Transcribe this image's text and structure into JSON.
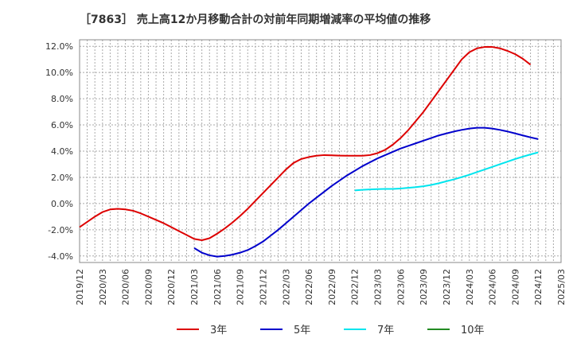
{
  "chart_data": {
    "type": "line",
    "title": "［7863］ 売上高12か月移動合計の対前年同期増減率の平均値の推移",
    "xlabel": "",
    "ylabel": "",
    "ylim": [
      -4.5,
      12.5
    ],
    "yticks": [
      -4.0,
      -2.0,
      0.0,
      2.0,
      4.0,
      6.0,
      8.0,
      10.0,
      12.0
    ],
    "ytick_labels": [
      "-4.0%",
      "-2.0%",
      "0.0%",
      "2.0%",
      "4.0%",
      "6.0%",
      "8.0%",
      "10.0%",
      "12.0%"
    ],
    "xticks": [
      "2019/12",
      "2020/03",
      "2020/06",
      "2020/09",
      "2020/12",
      "2021/03",
      "2021/06",
      "2021/09",
      "2021/12",
      "2022/03",
      "2022/06",
      "2022/09",
      "2022/12",
      "2023/03",
      "2023/06",
      "2023/09",
      "2023/12",
      "2024/03",
      "2024/06",
      "2024/09",
      "2024/12",
      "2025/03"
    ],
    "grid": true,
    "legend_position": "bottom",
    "series": [
      {
        "name": "3年",
        "color": "#dd0000",
        "points": [
          [
            "2019/12",
            -1.8
          ],
          [
            "2020/01",
            -1.4
          ],
          [
            "2020/02",
            -1.0
          ],
          [
            "2020/03",
            -0.65
          ],
          [
            "2020/04",
            -0.45
          ],
          [
            "2020/05",
            -0.4
          ],
          [
            "2020/06",
            -0.45
          ],
          [
            "2020/07",
            -0.55
          ],
          [
            "2020/08",
            -0.75
          ],
          [
            "2020/09",
            -1.0
          ],
          [
            "2020/10",
            -1.25
          ],
          [
            "2020/11",
            -1.5
          ],
          [
            "2020/12",
            -1.8
          ],
          [
            "2021/01",
            -2.1
          ],
          [
            "2021/02",
            -2.4
          ],
          [
            "2021/03",
            -2.7
          ],
          [
            "2021/04",
            -2.8
          ],
          [
            "2021/05",
            -2.65
          ],
          [
            "2021/06",
            -2.3
          ],
          [
            "2021/07",
            -1.9
          ],
          [
            "2021/08",
            -1.45
          ],
          [
            "2021/09",
            -0.95
          ],
          [
            "2021/10",
            -0.4
          ],
          [
            "2021/11",
            0.2
          ],
          [
            "2021/12",
            0.8
          ],
          [
            "2022/01",
            1.4
          ],
          [
            "2022/02",
            2.0
          ],
          [
            "2022/03",
            2.6
          ],
          [
            "2022/04",
            3.1
          ],
          [
            "2022/05",
            3.4
          ],
          [
            "2022/06",
            3.55
          ],
          [
            "2022/07",
            3.65
          ],
          [
            "2022/08",
            3.7
          ],
          [
            "2022/09",
            3.68
          ],
          [
            "2022/10",
            3.66
          ],
          [
            "2022/11",
            3.65
          ],
          [
            "2022/12",
            3.65
          ],
          [
            "2023/01",
            3.65
          ],
          [
            "2023/02",
            3.7
          ],
          [
            "2023/03",
            3.85
          ],
          [
            "2023/04",
            4.1
          ],
          [
            "2023/05",
            4.5
          ],
          [
            "2023/06",
            5.0
          ],
          [
            "2023/07",
            5.6
          ],
          [
            "2023/08",
            6.3
          ],
          [
            "2023/09",
            7.0
          ],
          [
            "2023/10",
            7.8
          ],
          [
            "2023/11",
            8.6
          ],
          [
            "2023/12",
            9.4
          ],
          [
            "2024/01",
            10.2
          ],
          [
            "2024/02",
            11.0
          ],
          [
            "2024/03",
            11.55
          ],
          [
            "2024/04",
            11.85
          ],
          [
            "2024/05",
            11.95
          ],
          [
            "2024/06",
            11.95
          ],
          [
            "2024/07",
            11.85
          ],
          [
            "2024/08",
            11.65
          ],
          [
            "2024/09",
            11.4
          ],
          [
            "2024/10",
            11.05
          ],
          [
            "2024/11",
            10.6
          ]
        ]
      },
      {
        "name": "5年",
        "color": "#0000cc",
        "points": [
          [
            "2021/03",
            -3.4
          ],
          [
            "2021/04",
            -3.75
          ],
          [
            "2021/05",
            -3.95
          ],
          [
            "2021/06",
            -4.05
          ],
          [
            "2021/07",
            -4.0
          ],
          [
            "2021/08",
            -3.9
          ],
          [
            "2021/09",
            -3.75
          ],
          [
            "2021/10",
            -3.55
          ],
          [
            "2021/11",
            -3.25
          ],
          [
            "2021/12",
            -2.9
          ],
          [
            "2022/01",
            -2.45
          ],
          [
            "2022/02",
            -2.0
          ],
          [
            "2022/03",
            -1.5
          ],
          [
            "2022/04",
            -1.0
          ],
          [
            "2022/05",
            -0.5
          ],
          [
            "2022/06",
            0.0
          ],
          [
            "2022/07",
            0.45
          ],
          [
            "2022/08",
            0.9
          ],
          [
            "2022/09",
            1.35
          ],
          [
            "2022/10",
            1.75
          ],
          [
            "2022/11",
            2.15
          ],
          [
            "2022/12",
            2.5
          ],
          [
            "2023/01",
            2.85
          ],
          [
            "2023/02",
            3.15
          ],
          [
            "2023/03",
            3.45
          ],
          [
            "2023/04",
            3.7
          ],
          [
            "2023/05",
            3.95
          ],
          [
            "2023/06",
            4.2
          ],
          [
            "2023/07",
            4.4
          ],
          [
            "2023/08",
            4.6
          ],
          [
            "2023/09",
            4.8
          ],
          [
            "2023/10",
            5.0
          ],
          [
            "2023/11",
            5.2
          ],
          [
            "2023/12",
            5.35
          ],
          [
            "2024/01",
            5.5
          ],
          [
            "2024/02",
            5.62
          ],
          [
            "2024/03",
            5.72
          ],
          [
            "2024/04",
            5.78
          ],
          [
            "2024/05",
            5.78
          ],
          [
            "2024/06",
            5.72
          ],
          [
            "2024/07",
            5.62
          ],
          [
            "2024/08",
            5.5
          ],
          [
            "2024/09",
            5.35
          ],
          [
            "2024/10",
            5.2
          ],
          [
            "2024/11",
            5.05
          ],
          [
            "2024/12",
            4.92
          ]
        ]
      },
      {
        "name": "7年",
        "color": "#00e5ee",
        "points": [
          [
            "2022/12",
            1.0
          ],
          [
            "2023/01",
            1.05
          ],
          [
            "2023/02",
            1.08
          ],
          [
            "2023/03",
            1.1
          ],
          [
            "2023/04",
            1.12
          ],
          [
            "2023/05",
            1.12
          ],
          [
            "2023/06",
            1.15
          ],
          [
            "2023/07",
            1.2
          ],
          [
            "2023/08",
            1.25
          ],
          [
            "2023/09",
            1.32
          ],
          [
            "2023/10",
            1.42
          ],
          [
            "2023/11",
            1.55
          ],
          [
            "2023/12",
            1.7
          ],
          [
            "2024/01",
            1.85
          ],
          [
            "2024/02",
            2.02
          ],
          [
            "2024/03",
            2.2
          ],
          [
            "2024/04",
            2.4
          ],
          [
            "2024/05",
            2.6
          ],
          [
            "2024/06",
            2.8
          ],
          [
            "2024/07",
            3.0
          ],
          [
            "2024/08",
            3.2
          ],
          [
            "2024/09",
            3.4
          ],
          [
            "2024/10",
            3.58
          ],
          [
            "2024/11",
            3.75
          ],
          [
            "2024/12",
            3.9
          ]
        ]
      },
      {
        "name": "10年",
        "color": "#228b22",
        "points": []
      }
    ]
  }
}
